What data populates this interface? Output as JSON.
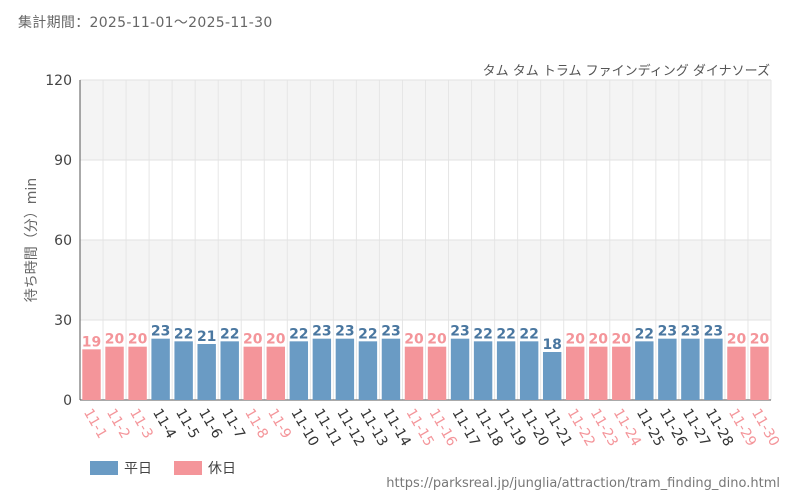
{
  "header": {
    "period": "集計期間：2025-11-01〜2025-11-30",
    "attraction": "タム タム トラム ファインディング ダイナソーズ"
  },
  "footer": {
    "source": "https://parksreal.jp/junglia/attraction/tram_finding_dino.html"
  },
  "colors": {
    "weekday": "#6a9bc4",
    "holiday": "#f4959a",
    "holiday_text": "#f4959a",
    "weekday_text": "#4a77a0"
  },
  "chart_data": {
    "type": "bar",
    "title": "タム タム トラム ファインディング ダイナソーズ",
    "xlabel": "",
    "ylabel": "待ち時間（分）min",
    "ylim": [
      0,
      120
    ],
    "yticks": [
      0,
      30,
      60,
      90,
      120
    ],
    "legend": [
      {
        "key": "weekday",
        "label": "平日"
      },
      {
        "key": "holiday",
        "label": "休日"
      }
    ],
    "categories": [
      "11-1",
      "11-2",
      "11-3",
      "11-4",
      "11-5",
      "11-6",
      "11-7",
      "11-8",
      "11-9",
      "11-10",
      "11-11",
      "11-12",
      "11-13",
      "11-14",
      "11-15",
      "11-16",
      "11-17",
      "11-18",
      "11-19",
      "11-20",
      "11-21",
      "11-22",
      "11-23",
      "11-24",
      "11-25",
      "11-26",
      "11-27",
      "11-28",
      "11-29",
      "11-30"
    ],
    "values": [
      19,
      20,
      20,
      23,
      22,
      21,
      22,
      20,
      20,
      22,
      23,
      23,
      22,
      23,
      20,
      20,
      23,
      22,
      22,
      22,
      18,
      20,
      20,
      20,
      22,
      23,
      23,
      23,
      20,
      20
    ],
    "day_type": [
      "holiday",
      "holiday",
      "holiday",
      "weekday",
      "weekday",
      "weekday",
      "weekday",
      "holiday",
      "holiday",
      "weekday",
      "weekday",
      "weekday",
      "weekday",
      "weekday",
      "holiday",
      "holiday",
      "weekday",
      "weekday",
      "weekday",
      "weekday",
      "weekday",
      "holiday",
      "holiday",
      "holiday",
      "weekday",
      "weekday",
      "weekday",
      "weekday",
      "holiday",
      "holiday"
    ]
  }
}
